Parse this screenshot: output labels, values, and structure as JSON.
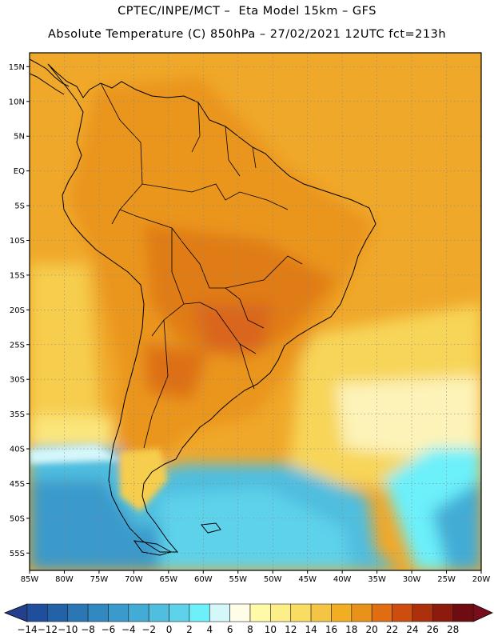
{
  "header": {
    "line1": "CPTEC/INPE/MCT –  Eta Model 15km – GFS",
    "line2": "Absolute Temperature (C) 850hPa – 27/02/2021 12UTC fct=213h"
  },
  "map": {
    "lon_labels": [
      "85W",
      "80W",
      "75W",
      "70W",
      "65W",
      "60W",
      "55W",
      "50W",
      "45W",
      "40W",
      "35W",
      "30W",
      "25W",
      "20W"
    ],
    "lat_labels": [
      "15N",
      "10N",
      "5N",
      "EQ",
      "5S",
      "10S",
      "15S",
      "20S",
      "25S",
      "30S",
      "35S",
      "40S",
      "45S",
      "50S",
      "55S"
    ],
    "lon_range": [
      -85,
      -20
    ],
    "lat_range": [
      17,
      -57.5
    ]
  },
  "colorbar": {
    "labels": [
      "-14",
      "-12",
      "-10",
      "-8",
      "-6",
      "-4",
      "-2",
      "0",
      "2",
      "4",
      "6",
      "8",
      "10",
      "12",
      "14",
      "16",
      "18",
      "20",
      "22",
      "24",
      "26",
      "28"
    ],
    "colors": [
      "#1f4f9c",
      "#2462a8",
      "#2b77b5",
      "#3288c0",
      "#3a9acb",
      "#43acd6",
      "#4fbedf",
      "#5dd2ea",
      "#6cf0fa",
      "#d4f7fa",
      "#fffce8",
      "#fffaa8",
      "#fcef88",
      "#f9dd62",
      "#f4c544",
      "#f1ae22",
      "#e9921a",
      "#e06d12",
      "#cc4d0e",
      "#ad300c",
      "#8c1b0e",
      "#6e0c12"
    ],
    "under_color": "#233f8e",
    "over_color": "#7a0d1c"
  }
}
